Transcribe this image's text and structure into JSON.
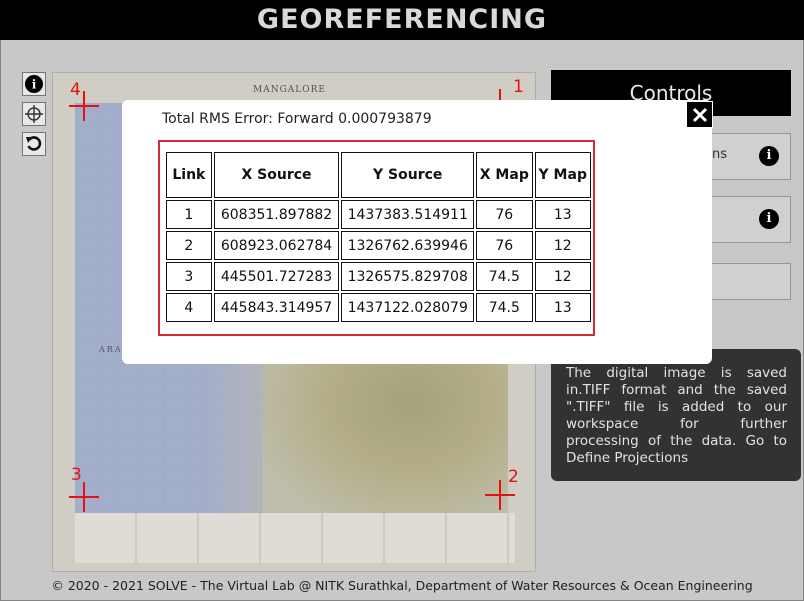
{
  "header": {
    "title": "GEOREFERENCING"
  },
  "toolbar": {
    "items": [
      {
        "name": "info",
        "icon": "info-icon"
      },
      {
        "name": "add-point",
        "icon": "crosshair-icon"
      },
      {
        "name": "reset",
        "icon": "undo-icon"
      }
    ]
  },
  "map": {
    "sheet_title": "MANGALORE",
    "sea_label": "ARAB",
    "points": [
      {
        "label": "1"
      },
      {
        "label": "2"
      },
      {
        "label": "3"
      },
      {
        "label": "4"
      }
    ]
  },
  "controls": {
    "title": "Controls",
    "panel1_text": "ns",
    "info_icon": "info-icon"
  },
  "note": {
    "text": "The digital image is saved in.TIFF format and the saved \".TIFF\" file is added to our workspace for further processing of the data. Go to Define Projections"
  },
  "modal": {
    "close_icon": "close-icon",
    "rms_text": "Total RMS Error: Forward 0.000793879",
    "table": {
      "headers": [
        "Link",
        "X Source",
        "Y Source",
        "X Map",
        "Y Map"
      ],
      "rows": [
        [
          "1",
          "608351.897882",
          "1437383.514911",
          "76",
          "13"
        ],
        [
          "2",
          "608923.062784",
          "1326762.639946",
          "76",
          "12"
        ],
        [
          "3",
          "445501.727283",
          "1326575.829708",
          "74.5",
          "12"
        ],
        [
          "4",
          "445843.314957",
          "1437122.028079",
          "74.5",
          "13"
        ]
      ]
    }
  },
  "footer": {
    "text": "© 2020 - 2021 SOLVE - The Virtual Lab @ NITK Surathkal, Department of Water Resources & Ocean Engineering"
  },
  "colors": {
    "accent_red": "#d42a35",
    "header_bg": "#000000",
    "note_bg": "#333333"
  }
}
